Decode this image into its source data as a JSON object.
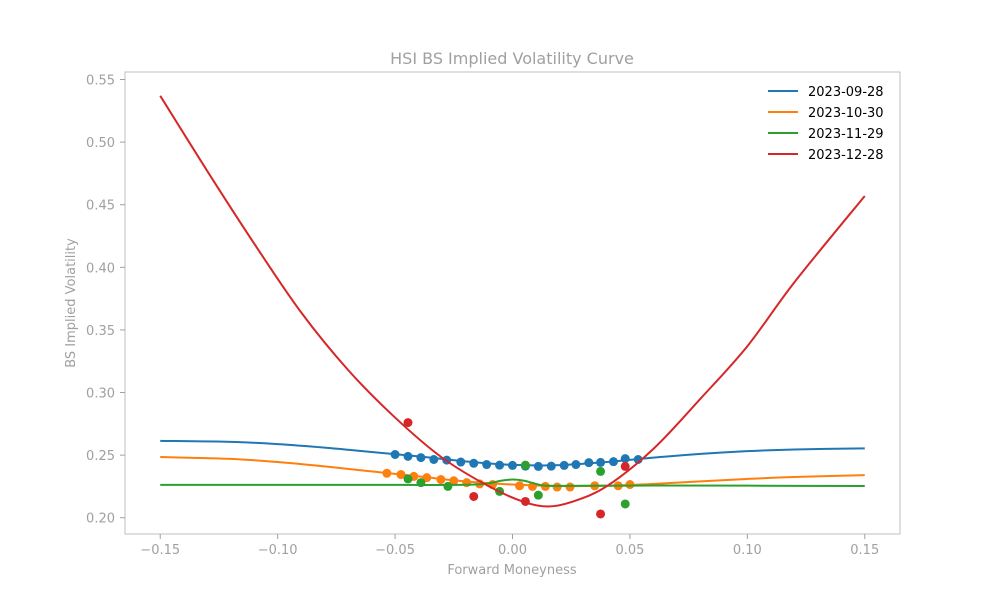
{
  "chart_data": {
    "type": "line",
    "title": "HSI BS Implied Volatility Curve",
    "xlabel": "Forward Moneyness",
    "ylabel": "BS Implied Volatility",
    "xlim": [
      -0.165,
      0.165
    ],
    "ylim": [
      0.187,
      0.556
    ],
    "xticks": [
      -0.15,
      -0.1,
      -0.05,
      0.0,
      0.05,
      0.1,
      0.15
    ],
    "xtick_labels": [
      "−0.15",
      "−0.10",
      "−0.05",
      "0.00",
      "0.05",
      "0.10",
      "0.15"
    ],
    "yticks": [
      0.2,
      0.25,
      0.3,
      0.35,
      0.4,
      0.45,
      0.5,
      0.55
    ],
    "ytick_labels": [
      "0.20",
      "0.25",
      "0.30",
      "0.35",
      "0.40",
      "0.45",
      "0.50",
      "0.55"
    ],
    "grid": false,
    "legend_position": "top-right",
    "series": [
      {
        "name": "2023-09-28",
        "color": "#1f77b4",
        "curve": [
          [
            -0.15,
            0.2614
          ],
          [
            -0.12,
            0.2606
          ],
          [
            -0.1,
            0.2588
          ],
          [
            -0.08,
            0.256
          ],
          [
            -0.06,
            0.2525
          ],
          [
            -0.04,
            0.249
          ],
          [
            -0.02,
            0.245
          ],
          [
            0.0,
            0.2422
          ],
          [
            0.02,
            0.242
          ],
          [
            0.04,
            0.2445
          ],
          [
            0.06,
            0.248
          ],
          [
            0.08,
            0.251
          ],
          [
            0.1,
            0.2532
          ],
          [
            0.12,
            0.2545
          ],
          [
            0.15,
            0.2554
          ]
        ],
        "points": [
          [
            -0.05,
            0.2505
          ],
          [
            -0.0445,
            0.249
          ],
          [
            -0.039,
            0.248
          ],
          [
            -0.0335,
            0.2465
          ],
          [
            -0.028,
            0.246
          ],
          [
            -0.022,
            0.2445
          ],
          [
            -0.0165,
            0.2435
          ],
          [
            -0.011,
            0.2425
          ],
          [
            -0.0055,
            0.242
          ],
          [
            0.0,
            0.2418
          ],
          [
            0.0055,
            0.2412
          ],
          [
            0.011,
            0.241
          ],
          [
            0.0165,
            0.2412
          ],
          [
            0.022,
            0.2418
          ],
          [
            0.027,
            0.2425
          ],
          [
            0.0325,
            0.244
          ],
          [
            0.0375,
            0.2442
          ],
          [
            0.043,
            0.2448
          ],
          [
            0.048,
            0.2472
          ],
          [
            0.0535,
            0.2465
          ]
        ]
      },
      {
        "name": "2023-10-30",
        "color": "#ff7f0e",
        "curve": [
          [
            -0.15,
            0.2485
          ],
          [
            -0.12,
            0.247
          ],
          [
            -0.1,
            0.2445
          ],
          [
            -0.08,
            0.241
          ],
          [
            -0.06,
            0.237
          ],
          [
            -0.04,
            0.233
          ],
          [
            -0.02,
            0.229
          ],
          [
            0.0,
            0.2265
          ],
          [
            0.02,
            0.2253
          ],
          [
            0.04,
            0.2255
          ],
          [
            0.06,
            0.227
          ],
          [
            0.08,
            0.229
          ],
          [
            0.1,
            0.231
          ],
          [
            0.12,
            0.2325
          ],
          [
            0.15,
            0.234
          ]
        ],
        "points": [
          [
            -0.0535,
            0.2355
          ],
          [
            -0.0475,
            0.2345
          ],
          [
            -0.042,
            0.233
          ],
          [
            -0.0365,
            0.232
          ],
          [
            -0.0305,
            0.2305
          ],
          [
            -0.025,
            0.2295
          ],
          [
            -0.0195,
            0.228
          ],
          [
            -0.014,
            0.227
          ],
          [
            -0.0085,
            0.2265
          ],
          [
            0.003,
            0.2255
          ],
          [
            0.0085,
            0.225
          ],
          [
            0.014,
            0.225
          ],
          [
            0.019,
            0.2245
          ],
          [
            0.0245,
            0.2245
          ],
          [
            0.035,
            0.2255
          ],
          [
            0.045,
            0.2255
          ],
          [
            0.05,
            0.2265
          ]
        ]
      },
      {
        "name": "2023-11-29",
        "color": "#2ca02c",
        "curve": [
          [
            -0.15,
            0.2262
          ],
          [
            -0.1,
            0.2262
          ],
          [
            -0.05,
            0.2262
          ],
          [
            -0.02,
            0.2263
          ],
          [
            -0.01,
            0.2275
          ],
          [
            -0.005,
            0.2295
          ],
          [
            0.0,
            0.2305
          ],
          [
            0.005,
            0.2295
          ],
          [
            0.01,
            0.227
          ],
          [
            0.015,
            0.2255
          ],
          [
            0.03,
            0.2255
          ],
          [
            0.06,
            0.2257
          ],
          [
            0.1,
            0.2256
          ],
          [
            0.15,
            0.2253
          ]
        ],
        "points": [
          [
            -0.0445,
            0.231
          ],
          [
            -0.039,
            0.228
          ],
          [
            -0.0275,
            0.225
          ],
          [
            -0.0055,
            0.221
          ],
          [
            0.0055,
            0.242
          ],
          [
            0.011,
            0.218
          ],
          [
            0.0375,
            0.237
          ],
          [
            0.048,
            0.211
          ]
        ]
      },
      {
        "name": "2023-12-28",
        "color": "#d62728",
        "curve": [
          [
            -0.15,
            0.537
          ],
          [
            -0.13,
            0.477
          ],
          [
            -0.11,
            0.419
          ],
          [
            -0.09,
            0.364
          ],
          [
            -0.07,
            0.318
          ],
          [
            -0.05,
            0.28
          ],
          [
            -0.03,
            0.248
          ],
          [
            -0.01,
            0.225
          ],
          [
            0.005,
            0.2125
          ],
          [
            0.015,
            0.209
          ],
          [
            0.025,
            0.2125
          ],
          [
            0.04,
            0.225
          ],
          [
            0.06,
            0.255
          ],
          [
            0.08,
            0.295
          ],
          [
            0.1,
            0.337
          ],
          [
            0.12,
            0.388
          ],
          [
            0.15,
            0.457
          ]
        ],
        "points": [
          [
            -0.0445,
            0.276
          ],
          [
            -0.0165,
            0.217
          ],
          [
            0.0055,
            0.213
          ],
          [
            0.0375,
            0.203
          ],
          [
            0.048,
            0.241
          ]
        ]
      }
    ]
  }
}
